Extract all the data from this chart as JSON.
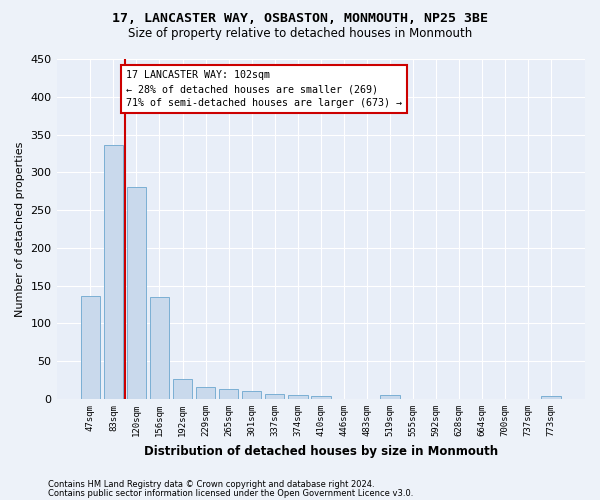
{
  "title": "17, LANCASTER WAY, OSBASTON, MONMOUTH, NP25 3BE",
  "subtitle": "Size of property relative to detached houses in Monmouth",
  "xlabel": "Distribution of detached houses by size in Monmouth",
  "ylabel": "Number of detached properties",
  "bar_color": "#c9d9ec",
  "bar_edge_color": "#7bafd4",
  "background_color": "#e8eef8",
  "grid_color": "#ffffff",
  "categories": [
    "47sqm",
    "83sqm",
    "120sqm",
    "156sqm",
    "192sqm",
    "229sqm",
    "265sqm",
    "301sqm",
    "337sqm",
    "374sqm",
    "410sqm",
    "446sqm",
    "483sqm",
    "519sqm",
    "555sqm",
    "592sqm",
    "628sqm",
    "664sqm",
    "700sqm",
    "737sqm",
    "773sqm"
  ],
  "values": [
    136,
    336,
    281,
    135,
    27,
    16,
    13,
    10,
    7,
    5,
    4,
    0,
    0,
    5,
    0,
    0,
    0,
    0,
    0,
    0,
    4
  ],
  "annotation_line1": "17 LANCASTER WAY: 102sqm",
  "annotation_line2": "← 28% of detached houses are smaller (269)",
  "annotation_line3": "71% of semi-detached houses are larger (673) →",
  "annotation_box_color": "#ffffff",
  "annotation_box_edge": "#cc0000",
  "red_line_x": 1.5,
  "ylim": [
    0,
    450
  ],
  "yticks": [
    0,
    50,
    100,
    150,
    200,
    250,
    300,
    350,
    400,
    450
  ],
  "footer_line1": "Contains HM Land Registry data © Crown copyright and database right 2024.",
  "footer_line2": "Contains public sector information licensed under the Open Government Licence v3.0."
}
